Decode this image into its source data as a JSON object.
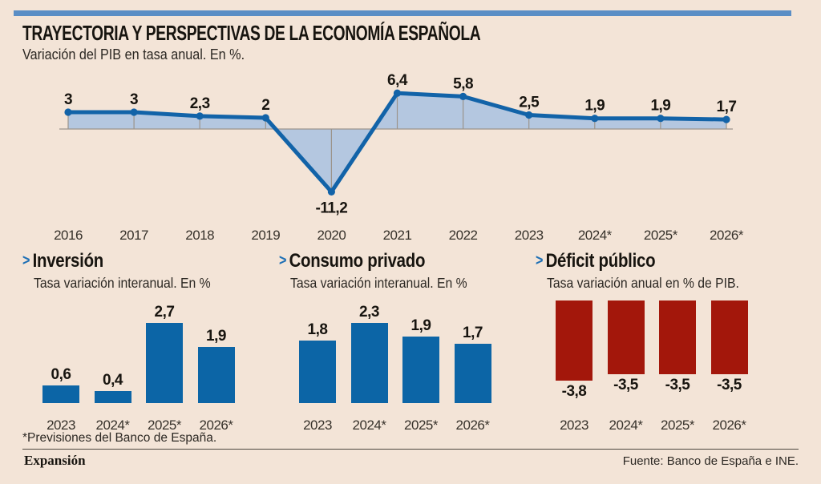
{
  "ui": {
    "arrow_glyph": ">"
  },
  "colors": {
    "background": "#f3e4d7",
    "accent_bar": "#5a8ec5",
    "line_blue": "#1263a8",
    "area_fill": "#b4c7e0",
    "axis_gray": "#9b948b",
    "bar_blue": "#0c65a6",
    "bar_red": "#a3170b",
    "arrow_blue": "#1d6fb5",
    "text": "#17140f"
  },
  "header": {
    "title": "TRAYECTORIA Y PERSPECTIVAS DE LA ECONOMÍA ESPAÑOLA",
    "subtitle": "Variación del PIB en tasa anual. En %."
  },
  "chart_data": [
    {
      "id": "pib-anual",
      "type": "area",
      "title": "Variación del PIB en tasa anual. En %.",
      "x": [
        "2016",
        "2017",
        "2018",
        "2019",
        "2020",
        "2021",
        "2022",
        "2023",
        "2024*",
        "2025*",
        "2026*"
      ],
      "values": [
        3,
        3,
        2.3,
        2,
        -11.2,
        6.4,
        5.8,
        2.5,
        1.9,
        1.9,
        1.7
      ],
      "point_labels": [
        "3",
        "3",
        "2,3",
        "2",
        "-11,2",
        "6,4",
        "5,8",
        "2,5",
        "1,9",
        "1,9",
        "1,7"
      ],
      "ylim": [
        -13,
        8
      ],
      "grid": "vertical droplines from each point to zero axis",
      "legend": "none",
      "line_color": "#1263a8",
      "fill_color": "#b4c7e0",
      "axis_color": "#9b948b"
    },
    {
      "id": "inversion",
      "type": "bar",
      "title": "Inversión",
      "subtitle": "Tasa variación interanual. En %",
      "categories": [
        "2023",
        "2024*",
        "2025*",
        "2026*"
      ],
      "values": [
        0.6,
        0.4,
        2.7,
        1.9
      ],
      "value_labels": [
        "0,6",
        "0,4",
        "2,7",
        "1,9"
      ],
      "bar_color": "#0c65a6"
    },
    {
      "id": "consumo-privado",
      "type": "bar",
      "title": "Consumo privado",
      "subtitle": "Tasa variación interanual. En %",
      "categories": [
        "2023",
        "2024*",
        "2025*",
        "2026*"
      ],
      "values": [
        1.8,
        2.3,
        1.9,
        1.7
      ],
      "value_labels": [
        "1,8",
        "2,3",
        "1,9",
        "1,7"
      ],
      "bar_color": "#0c65a6"
    },
    {
      "id": "deficit-publico",
      "type": "bar",
      "title": "Déficit público",
      "subtitle": "Tasa variación anual en % de PIB.",
      "categories": [
        "2023",
        "2024*",
        "2025*",
        "2026*"
      ],
      "values": [
        -3.8,
        -3.5,
        -3.5,
        -3.5
      ],
      "value_labels": [
        "-3,8",
        "-3,5",
        "-3,5",
        "-3,5"
      ],
      "bar_color": "#a3170b"
    }
  ],
  "footer": {
    "note": "*Previsiones del Banco de España.",
    "brand": "Expansión",
    "source": "Fuente: Banco de España e INE."
  }
}
